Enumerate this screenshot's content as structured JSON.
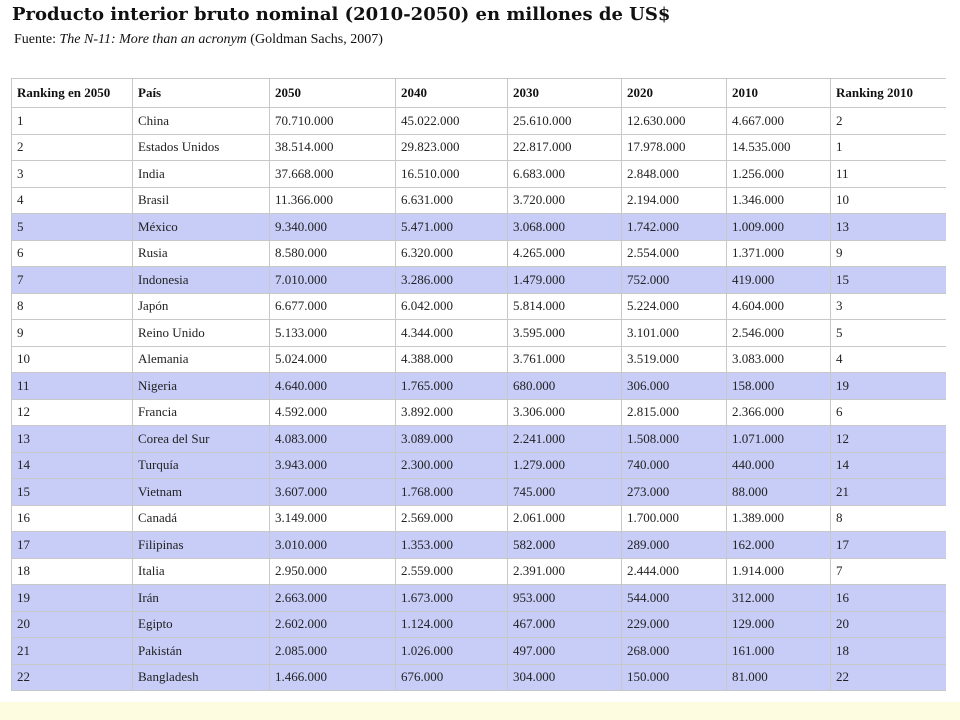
{
  "header": {
    "title": "Producto interior bruto nominal (2010-2050) en millones de US$",
    "source_prefix": "Fuente: ",
    "source_italic": "The N-11: More than an acronym",
    "source_suffix": " (Goldman Sachs, 2007)"
  },
  "table": {
    "columns": [
      "Ranking en 2050",
      "País",
      "2050",
      "2040",
      "2030",
      "2020",
      "2010",
      "Ranking 2010"
    ],
    "rows": [
      {
        "highlight": false,
        "cells": [
          "1",
          "China",
          "70.710.000",
          "45.022.000",
          "25.610.000",
          "12.630.000",
          "4.667.000",
          "2"
        ]
      },
      {
        "highlight": false,
        "cells": [
          "2",
          "Estados Unidos",
          "38.514.000",
          "29.823.000",
          "22.817.000",
          "17.978.000",
          "14.535.000",
          "1"
        ]
      },
      {
        "highlight": false,
        "cells": [
          "3",
          "India",
          "37.668.000",
          "16.510.000",
          "6.683.000",
          "2.848.000",
          "1.256.000",
          "11"
        ]
      },
      {
        "highlight": false,
        "cells": [
          "4",
          "Brasil",
          "11.366.000",
          "6.631.000",
          "3.720.000",
          "2.194.000",
          "1.346.000",
          "10"
        ]
      },
      {
        "highlight": true,
        "cells": [
          "5",
          "México",
          "9.340.000",
          "5.471.000",
          "3.068.000",
          "1.742.000",
          "1.009.000",
          "13"
        ]
      },
      {
        "highlight": false,
        "cells": [
          "6",
          "Rusia",
          "8.580.000",
          "6.320.000",
          "4.265.000",
          "2.554.000",
          "1.371.000",
          "9"
        ]
      },
      {
        "highlight": true,
        "cells": [
          "7",
          "Indonesia",
          "7.010.000",
          "3.286.000",
          "1.479.000",
          "752.000",
          "419.000",
          "15"
        ]
      },
      {
        "highlight": false,
        "cells": [
          "8",
          "Japón",
          "6.677.000",
          "6.042.000",
          "5.814.000",
          "5.224.000",
          "4.604.000",
          "3"
        ]
      },
      {
        "highlight": false,
        "cells": [
          "9",
          "Reino Unido",
          "5.133.000",
          "4.344.000",
          "3.595.000",
          "3.101.000",
          "2.546.000",
          "5"
        ]
      },
      {
        "highlight": false,
        "cells": [
          "10",
          "Alemania",
          "5.024.000",
          "4.388.000",
          "3.761.000",
          "3.519.000",
          "3.083.000",
          "4"
        ]
      },
      {
        "highlight": true,
        "cells": [
          "11",
          "Nigeria",
          "4.640.000",
          "1.765.000",
          "680.000",
          "306.000",
          "158.000",
          "19"
        ]
      },
      {
        "highlight": false,
        "cells": [
          "12",
          "Francia",
          "4.592.000",
          "3.892.000",
          "3.306.000",
          "2.815.000",
          "2.366.000",
          "6"
        ]
      },
      {
        "highlight": true,
        "cells": [
          "13",
          "Corea del Sur",
          "4.083.000",
          "3.089.000",
          "2.241.000",
          "1.508.000",
          "1.071.000",
          "12"
        ]
      },
      {
        "highlight": true,
        "cells": [
          "14",
          "Turquía",
          "3.943.000",
          "2.300.000",
          "1.279.000",
          "740.000",
          "440.000",
          "14"
        ]
      },
      {
        "highlight": true,
        "cells": [
          "15",
          "Vietnam",
          "3.607.000",
          "1.768.000",
          "745.000",
          "273.000",
          "88.000",
          "21"
        ]
      },
      {
        "highlight": false,
        "cells": [
          "16",
          "Canadá",
          "3.149.000",
          "2.569.000",
          "2.061.000",
          "1.700.000",
          "1.389.000",
          "8"
        ]
      },
      {
        "highlight": true,
        "cells": [
          "17",
          "Filipinas",
          "3.010.000",
          "1.353.000",
          "582.000",
          "289.000",
          "162.000",
          "17"
        ]
      },
      {
        "highlight": false,
        "cells": [
          "18",
          "Italia",
          "2.950.000",
          "2.559.000",
          "2.391.000",
          "2.444.000",
          "1.914.000",
          "7"
        ]
      },
      {
        "highlight": true,
        "cells": [
          "19",
          "Irán",
          "2.663.000",
          "1.673.000",
          "953.000",
          "544.000",
          "312.000",
          "16"
        ]
      },
      {
        "highlight": true,
        "cells": [
          "20",
          "Egipto",
          "2.602.000",
          "1.124.000",
          "467.000",
          "229.000",
          "129.000",
          "20"
        ]
      },
      {
        "highlight": true,
        "cells": [
          "21",
          "Pakistán",
          "2.085.000",
          "1.026.000",
          "497.000",
          "268.000",
          "161.000",
          "18"
        ]
      },
      {
        "highlight": true,
        "cells": [
          "22",
          "Bangladesh",
          "1.466.000",
          "676.000",
          "304.000",
          "150.000",
          "81.000",
          "22"
        ]
      }
    ]
  },
  "colors": {
    "highlight_row": "#c7cdf7",
    "bottom_band": "#fdfce0",
    "border": "#c8c8c8"
  }
}
